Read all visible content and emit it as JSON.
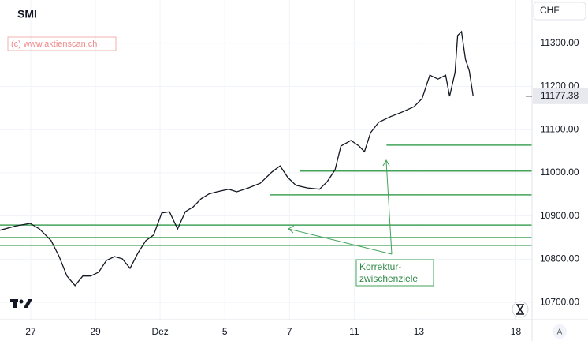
{
  "chart_data": {
    "type": "line",
    "title": "SMI",
    "watermark": "(c) www.aktienscan.ch",
    "currency": "CHF",
    "scale_button": "A",
    "series": [
      {
        "color": "#131722",
        "x": [
          -0.95,
          -0.46,
          -0.02,
          0.27,
          0.63,
          0.88,
          1.12,
          1.37,
          1.61,
          1.85,
          2.1,
          2.34,
          2.59,
          2.83,
          3.07,
          3.32,
          3.56,
          3.8,
          4.05,
          4.29,
          4.54,
          4.78,
          5.02,
          5.27,
          5.51,
          5.76,
          6.12,
          6.37,
          6.73,
          7.1,
          7.46,
          7.71,
          7.95,
          8.2,
          8.56,
          8.93,
          9.17,
          9.41,
          9.59,
          9.9,
          10.15,
          10.32,
          10.51,
          10.76,
          11.12,
          11.49,
          11.85,
          12.1,
          12.22,
          12.34,
          12.59,
          12.83,
          12.95,
          13.12,
          13.2,
          13.32,
          13.44,
          13.56,
          13.68
        ],
        "values": [
          10867,
          10877,
          10883,
          10870,
          10843,
          10806,
          10761,
          10739,
          10761,
          10761,
          10770,
          10797,
          10806,
          10801,
          10779,
          10815,
          10843,
          10856,
          10907,
          10910,
          10870,
          10910,
          10921,
          10940,
          10951,
          10956,
          10962,
          10956,
          10965,
          10976,
          11002,
          11016,
          10989,
          10971,
          10965,
          10962,
          10980,
          11007,
          11062,
          11075,
          11062,
          11049,
          11093,
          11117,
          11130,
          11141,
          11153,
          11172,
          11199,
          11226,
          11217,
          11226,
          11177,
          11232,
          11318,
          11327,
          11263,
          11236,
          11177.38
        ]
      }
    ],
    "xlim": [
      -0.95,
      15.5
    ],
    "ylim": [
      10660,
      11400
    ],
    "xticks": [
      {
        "value": 0,
        "label": "27"
      },
      {
        "value": 2,
        "label": "29"
      },
      {
        "value": 4,
        "label": "Dez"
      },
      {
        "value": 6,
        "label": "5"
      },
      {
        "value": 8,
        "label": "7"
      },
      {
        "value": 10,
        "label": "11"
      },
      {
        "value": 12,
        "label": "13"
      },
      {
        "value": 15,
        "label": "18"
      }
    ],
    "yticks": [
      {
        "value": 10700,
        "label": "10700.00"
      },
      {
        "value": 10800,
        "label": "10800.00"
      },
      {
        "value": 10900,
        "label": "10900.00"
      },
      {
        "value": 11000,
        "label": "11000.00"
      },
      {
        "value": 11100,
        "label": "11100.00"
      },
      {
        "value": 11200,
        "label": "11200.00"
      },
      {
        "value": 11300,
        "label": "11300.00"
      }
    ],
    "grid": true,
    "levels": [
      {
        "value": 11064,
        "from": 11.0
      },
      {
        "value": 11004,
        "from": 8.32
      },
      {
        "value": 10949,
        "from": 7.41
      },
      {
        "value": 10879,
        "from": -0.95
      },
      {
        "value": 10850,
        "from": -0.95
      },
      {
        "value": 10832,
        "from": -0.95
      }
    ],
    "level_color": "#43a35a",
    "annotation": [
      "Korrektur-",
      "zwischenziele"
    ]
  }
}
